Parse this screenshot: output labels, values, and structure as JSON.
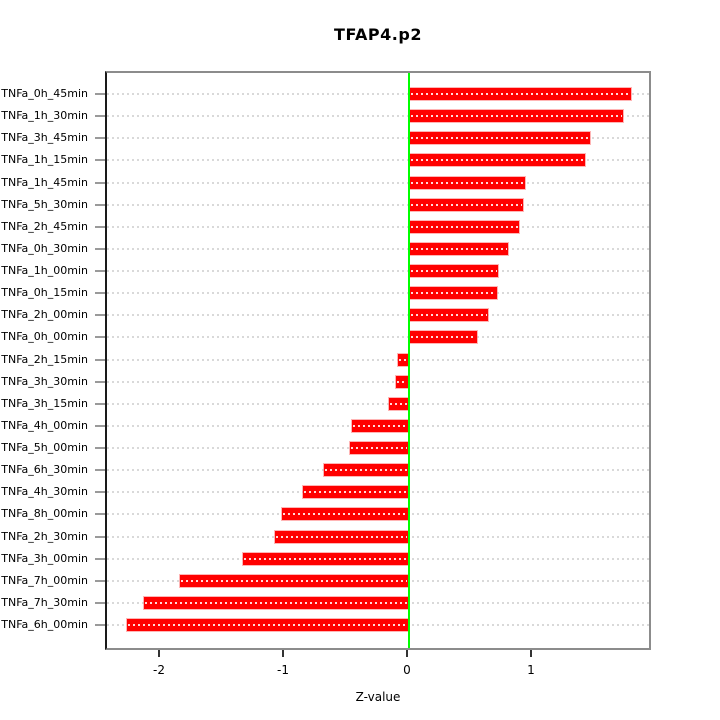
{
  "chart_data": {
    "type": "bar",
    "orientation": "horizontal",
    "title": "TFAP4.p2",
    "xlabel": "Z-value",
    "ylabel": "",
    "categories": [
      "TNFa_0h_45min",
      "TNFa_1h_30min",
      "TNFa_3h_45min",
      "TNFa_1h_15min",
      "TNFa_1h_45min",
      "TNFa_5h_30min",
      "TNFa_2h_45min",
      "TNFa_0h_30min",
      "TNFa_1h_00min",
      "TNFa_0h_15min",
      "TNFa_2h_00min",
      "TNFa_0h_00min",
      "TNFa_2h_15min",
      "TNFa_3h_30min",
      "TNFa_3h_15min",
      "TNFa_4h_00min",
      "TNFa_5h_00min",
      "TNFa_6h_30min",
      "TNFa_4h_30min",
      "TNFa_8h_00min",
      "TNFa_2h_30min",
      "TNFa_3h_00min",
      "TNFa_7h_00min",
      "TNFa_7h_30min",
      "TNFa_6h_00min"
    ],
    "values": [
      1.78,
      1.72,
      1.45,
      1.41,
      0.93,
      0.91,
      0.88,
      0.79,
      0.71,
      0.7,
      0.63,
      0.54,
      -0.08,
      -0.1,
      -0.15,
      -0.45,
      -0.47,
      -0.68,
      -0.85,
      -1.02,
      -1.07,
      -1.33,
      -1.84,
      -2.13,
      -2.27
    ],
    "xticks": [
      "-2",
      "-1",
      "0",
      "1"
    ],
    "xtick_values": [
      -2,
      -1,
      0,
      1
    ],
    "xlim": [
      -2.44,
      1.95
    ],
    "bar_color": "#FF0000",
    "zero_line_color": "#00FF00",
    "grid": "dotted horizontal line per category",
    "legend": "none"
  }
}
